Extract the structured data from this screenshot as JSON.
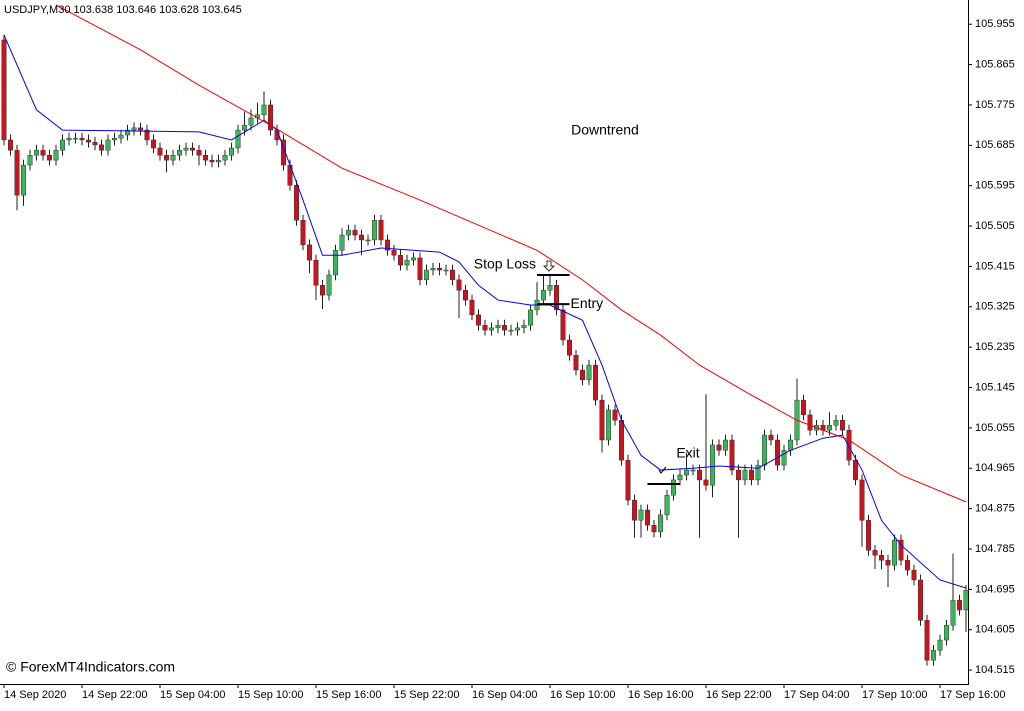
{
  "chart_data": {
    "type": "candlestick",
    "header": "USDJPY,M30  103.638 103.646 103.628 103.645",
    "watermark": "© ForexMT4Indicators.com",
    "annotation": "Downtrend",
    "up_color": "#3cb45a",
    "down_color": "#c8141e",
    "categories": [
      "14 Sep 2020",
      null,
      null,
      null,
      null,
      null,
      null,
      null,
      null,
      null,
      null,
      null,
      "14 Sep 22:00",
      null,
      null,
      null,
      null,
      null,
      null,
      null,
      null,
      null,
      null,
      null,
      "15 Sep 04:00",
      null,
      null,
      null,
      null,
      null,
      null,
      null,
      null,
      null,
      null,
      null,
      "15 Sep 10:00",
      null,
      null,
      null,
      null,
      null,
      null,
      null,
      null,
      null,
      null,
      null,
      "15 Sep 16:00",
      null,
      null,
      null,
      null,
      null,
      null,
      null,
      null,
      null,
      null,
      null,
      "15 Sep 22:00",
      null,
      null,
      null,
      null,
      null,
      null,
      null,
      null,
      null,
      null,
      null,
      "16 Sep 04:00",
      null,
      null,
      null,
      null,
      null,
      null,
      null,
      null,
      null,
      null,
      null,
      "16 Sep 10:00",
      null,
      null,
      null,
      null,
      null,
      null,
      null,
      null,
      null,
      null,
      null,
      "16 Sep 16:00",
      null,
      null,
      null,
      null,
      null,
      null,
      null,
      null,
      null,
      null,
      null,
      "16 Sep 22:00",
      null,
      null,
      null,
      null,
      null,
      null,
      null,
      null,
      null,
      null,
      null,
      "17 Sep 04:00",
      null,
      null,
      null,
      null,
      null,
      null,
      null,
      null,
      null,
      null,
      null,
      "17 Sep 10:00",
      null,
      null,
      null,
      null,
      null,
      null,
      null,
      null,
      null,
      null,
      null,
      "17 Sep 16:00",
      null,
      null,
      null,
      null
    ],
    "open": [
      105.92,
      105.697,
      105.674,
      105.574,
      105.641,
      105.663,
      105.674,
      105.663,
      105.652,
      105.674,
      105.697,
      105.701,
      105.701,
      105.697,
      105.692,
      105.686,
      105.674,
      105.697,
      105.701,
      105.708,
      105.719,
      105.724,
      105.719,
      105.697,
      105.679,
      105.663,
      105.652,
      105.663,
      105.674,
      105.679,
      105.674,
      105.663,
      105.652,
      105.648,
      105.652,
      105.663,
      105.679,
      105.719,
      105.73,
      105.746,
      105.753,
      105.775,
      105.719,
      105.697,
      105.641,
      105.596,
      105.518,
      105.463,
      105.429,
      105.373,
      105.351,
      105.396,
      105.451,
      105.485,
      105.496,
      105.485,
      105.474,
      105.474,
      105.518,
      105.474,
      105.451,
      105.44,
      105.418,
      105.429,
      105.434,
      105.385,
      105.407,
      105.411,
      105.407,
      105.407,
      105.385,
      105.362,
      105.34,
      105.307,
      105.284,
      105.273,
      105.278,
      105.284,
      105.273,
      105.273,
      105.278,
      105.284,
      105.318,
      105.34,
      105.362,
      105.373,
      105.318,
      105.251,
      105.217,
      105.184,
      105.162,
      105.195,
      105.117,
      105.028,
      105.095,
      105.072,
      104.983,
      104.894,
      104.849,
      104.872,
      104.838,
      104.823,
      104.861,
      104.905,
      104.939,
      104.95,
      104.961,
      104.961,
      104.939,
      104.927,
      105.017,
      105.005,
      105.028,
      104.961,
      104.939,
      104.961,
      104.939,
      104.972,
      105.039,
      105.028,
      104.972,
      105.005,
      105.028,
      105.117,
      105.084,
      105.05,
      105.061,
      105.05,
      105.061,
      105.072,
      105.05,
      104.983,
      104.939,
      104.849,
      104.782,
      104.771,
      104.76,
      104.749,
      104.805,
      104.76,
      104.738,
      104.716,
      104.626,
      104.537,
      104.559,
      104.582,
      104.615,
      104.671,
      104.649
    ],
    "high": [
      105.932,
      105.709,
      105.686,
      105.653,
      105.675,
      105.686,
      105.686,
      105.675,
      105.686,
      105.709,
      105.713,
      105.713,
      105.713,
      105.709,
      105.704,
      105.698,
      105.709,
      105.713,
      105.72,
      105.731,
      105.736,
      105.736,
      105.731,
      105.709,
      105.691,
      105.675,
      105.675,
      105.686,
      105.691,
      105.691,
      105.686,
      105.675,
      105.664,
      105.664,
      105.675,
      105.691,
      105.731,
      105.76,
      105.765,
      105.78,
      105.805,
      105.787,
      105.731,
      105.709,
      105.653,
      105.608,
      105.53,
      105.475,
      105.441,
      105.385,
      105.408,
      105.463,
      105.5,
      105.508,
      105.508,
      105.497,
      105.486,
      105.53,
      105.53,
      105.486,
      105.463,
      105.452,
      105.441,
      105.446,
      105.446,
      105.419,
      105.423,
      105.423,
      105.419,
      105.419,
      105.397,
      105.374,
      105.352,
      105.319,
      105.296,
      105.29,
      105.296,
      105.296,
      105.285,
      105.29,
      105.296,
      105.33,
      105.38,
      105.395,
      105.395,
      105.385,
      105.33,
      105.263,
      105.229,
      105.196,
      105.207,
      105.207,
      105.129,
      105.107,
      105.107,
      105.084,
      104.995,
      104.906,
      104.884,
      104.884,
      104.85,
      104.873,
      104.917,
      104.951,
      104.962,
      105.0,
      104.973,
      104.973,
      105.13,
      105.029,
      105.029,
      105.04,
      105.04,
      104.973,
      104.973,
      104.973,
      104.984,
      105.051,
      105.051,
      105.04,
      105.017,
      105.04,
      105.165,
      105.129,
      105.096,
      105.073,
      105.073,
      105.09,
      105.084,
      105.084,
      105.062,
      104.995,
      104.951,
      104.861,
      104.794,
      104.783,
      104.772,
      104.817,
      104.817,
      104.772,
      104.75,
      104.728,
      104.638,
      104.571,
      104.594,
      104.627,
      104.775,
      104.683,
      104.705
    ],
    "low": [
      105.685,
      105.662,
      105.54,
      105.55,
      105.629,
      105.651,
      105.651,
      105.64,
      105.64,
      105.662,
      105.685,
      105.689,
      105.685,
      105.68,
      105.674,
      105.662,
      105.662,
      105.685,
      105.689,
      105.696,
      105.707,
      105.707,
      105.685,
      105.667,
      105.651,
      105.625,
      105.64,
      105.651,
      105.662,
      105.662,
      105.64,
      105.64,
      105.636,
      105.636,
      105.64,
      105.651,
      105.667,
      105.707,
      105.718,
      105.734,
      105.741,
      105.707,
      105.685,
      105.629,
      105.584,
      105.506,
      105.451,
      105.4,
      105.34,
      105.32,
      105.339,
      105.384,
      105.439,
      105.473,
      105.473,
      105.44,
      105.462,
      105.462,
      105.462,
      105.439,
      105.428,
      105.406,
      105.406,
      105.417,
      105.373,
      105.373,
      105.395,
      105.395,
      105.395,
      105.373,
      105.3,
      105.328,
      105.295,
      105.272,
      105.261,
      105.261,
      105.266,
      105.261,
      105.261,
      105.261,
      105.266,
      105.272,
      105.306,
      105.328,
      105.35,
      105.306,
      105.239,
      105.205,
      105.172,
      105.15,
      105.15,
      105.105,
      105.0,
      105.016,
      105.06,
      104.971,
      104.882,
      104.81,
      104.81,
      104.826,
      104.811,
      104.811,
      104.849,
      104.893,
      104.927,
      104.938,
      104.949,
      104.81,
      104.915,
      104.9,
      104.993,
      104.993,
      104.949,
      104.81,
      104.927,
      104.927,
      104.927,
      104.96,
      105.016,
      104.96,
      104.96,
      104.993,
      105.016,
      105.072,
      105.038,
      105.038,
      105.038,
      105.038,
      105.049,
      105.038,
      104.971,
      104.927,
      104.79,
      104.77,
      104.74,
      104.74,
      104.7,
      104.737,
      104.748,
      104.726,
      104.704,
      104.614,
      104.525,
      104.525,
      104.547,
      104.57,
      104.603,
      104.637,
      104.6
    ],
    "close": [
      105.697,
      105.674,
      105.574,
      105.641,
      105.663,
      105.674,
      105.663,
      105.652,
      105.674,
      105.697,
      105.701,
      105.701,
      105.697,
      105.692,
      105.686,
      105.674,
      105.697,
      105.701,
      105.708,
      105.719,
      105.724,
      105.719,
      105.697,
      105.679,
      105.663,
      105.652,
      105.663,
      105.674,
      105.679,
      105.674,
      105.663,
      105.652,
      105.648,
      105.652,
      105.663,
      105.679,
      105.719,
      105.73,
      105.746,
      105.753,
      105.775,
      105.719,
      105.697,
      105.641,
      105.596,
      105.518,
      105.463,
      105.429,
      105.373,
      105.351,
      105.396,
      105.451,
      105.485,
      105.496,
      105.485,
      105.474,
      105.474,
      105.518,
      105.474,
      105.451,
      105.44,
      105.418,
      105.429,
      105.434,
      105.385,
      105.407,
      105.411,
      105.407,
      105.407,
      105.385,
      105.362,
      105.34,
      105.307,
      105.284,
      105.273,
      105.278,
      105.284,
      105.273,
      105.273,
      105.278,
      105.284,
      105.318,
      105.34,
      105.362,
      105.373,
      105.318,
      105.251,
      105.217,
      105.184,
      105.162,
      105.195,
      105.117,
      105.028,
      105.095,
      105.072,
      104.983,
      104.894,
      104.849,
      104.872,
      104.838,
      104.823,
      104.861,
      104.905,
      104.939,
      104.95,
      104.961,
      104.961,
      104.939,
      104.927,
      105.017,
      105.005,
      105.028,
      104.961,
      104.939,
      104.961,
      104.939,
      104.972,
      105.039,
      105.028,
      104.972,
      105.005,
      105.028,
      105.117,
      105.084,
      105.05,
      105.061,
      105.05,
      105.061,
      105.072,
      105.05,
      104.983,
      104.939,
      104.849,
      104.782,
      104.771,
      104.76,
      104.749,
      104.805,
      104.76,
      104.738,
      104.716,
      104.626,
      104.537,
      104.559,
      104.582,
      104.615,
      104.671,
      104.649,
      104.693
    ],
    "lines": [
      {
        "color": "#0000ff",
        "x": [
          0,
          5,
          9,
          30,
          35,
          40,
          42,
          46,
          49,
          52,
          58,
          67,
          70,
          73,
          76,
          81,
          84,
          89,
          92,
          95,
          98,
          101,
          106,
          110,
          116,
          121,
          126,
          129,
          132,
          135,
          138,
          144,
          148
        ],
        "values": [
          105.931,
          105.764,
          105.719,
          105.715,
          105.697,
          105.741,
          105.719,
          105.563,
          105.44,
          105.44,
          105.456,
          105.447,
          105.425,
          105.373,
          105.34,
          105.329,
          105.329,
          105.295,
          105.195,
          105.072,
          104.994,
          104.961,
          104.965,
          104.97,
          104.965,
          105.005,
          105.032,
          105.039,
          104.961,
          104.849,
          104.794,
          104.716,
          104.698
        ]
      },
      {
        "color": "#ff0000",
        "x": [
          8,
          21,
          30,
          41,
          52,
          64,
          73,
          82,
          89,
          95,
          101,
          107,
          115,
          122,
          130,
          138,
          148
        ],
        "values": [
          105.998,
          105.898,
          105.819,
          105.73,
          105.634,
          105.563,
          105.507,
          105.451,
          105.385,
          105.318,
          105.262,
          105.195,
          105.128,
          105.072,
          105.028,
          104.95,
          104.89
        ]
      }
    ],
    "levels": [
      {
        "label": "Stop Loss",
        "value": 105.396,
        "from": 82,
        "to": 87
      },
      {
        "label": "Entry",
        "value": 105.331,
        "from": 82,
        "to": 87
      },
      {
        "label": "Exit",
        "value": 104.93,
        "from": 99,
        "to": 104
      }
    ],
    "ylim": [
      104.484,
      106.009
    ],
    "yticks": [
      105.955,
      105.865,
      105.775,
      105.685,
      105.595,
      105.505,
      105.415,
      105.325,
      105.235,
      105.145,
      105.055,
      104.965,
      104.875,
      104.785,
      104.695,
      104.605,
      104.515
    ]
  }
}
